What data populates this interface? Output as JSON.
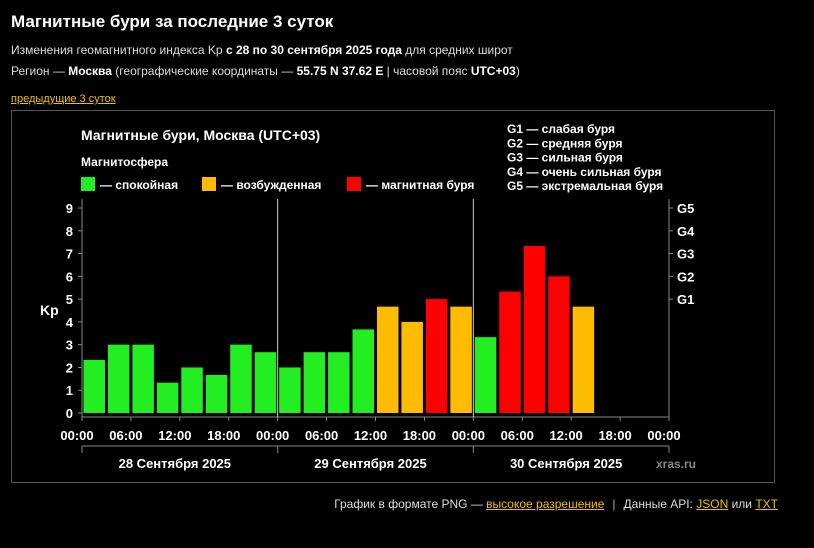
{
  "page": {
    "title": "Магнитные бури за последние 3 суток",
    "sub1_a": "Изменения геомагнитного индекса Kp ",
    "sub1_b": "с 28 по 30 сентября 2025 года",
    "sub1_c": " для средних широт",
    "sub2_a": "Регион — ",
    "sub2_b": "Москва",
    "sub2_c": " (географические координаты — ",
    "sub2_d": "55.75 N 37.62 E",
    "sub2_e": " | часовой пояс ",
    "sub2_f": "UTC+03",
    "sub2_g": ")",
    "prev_link": "предыдущие 3 суток"
  },
  "footer": {
    "text_a": "График в формате PNG — ",
    "hires_link": "высокое разрешение",
    "text_b": "Данные API: ",
    "json_link": "JSON",
    "text_or": " или ",
    "txt_link": "TXT"
  },
  "chart_data": {
    "type": "bar",
    "title": "Магнитные бури, Москва (UTC+03)",
    "ylabel": "Kp",
    "ylim": [
      0,
      9
    ],
    "yticks": [
      0,
      1,
      2,
      3,
      4,
      5,
      6,
      7,
      8,
      9
    ],
    "right_axis_labels": [
      {
        "label": "G1",
        "value": 5
      },
      {
        "label": "G2",
        "value": 6
      },
      {
        "label": "G3",
        "value": 7
      },
      {
        "label": "G4",
        "value": 8
      },
      {
        "label": "G5",
        "value": 9
      }
    ],
    "legend_title": "Магнитосфера",
    "legend": [
      {
        "label": "— спокойная",
        "color": "#22ee22"
      },
      {
        "label": "— возбужденная",
        "color": "#ffbb00"
      },
      {
        "label": "— магнитная буря",
        "color": "#ff0000"
      }
    ],
    "storm_levels": [
      "G1 — слабая буря",
      "G2 — средняя буря",
      "G3 — сильная буря",
      "G4 — очень сильная буря",
      "G5 — экстремальная буря"
    ],
    "x_tick_labels": [
      "00:00",
      "06:00",
      "12:00",
      "18:00",
      "00:00",
      "06:00",
      "12:00",
      "18:00",
      "00:00",
      "06:00",
      "12:00",
      "18:00",
      "00:00"
    ],
    "days": [
      "28 Сентября 2025",
      "29 Сентября 2025",
      "30 Сентября 2025"
    ],
    "watermark": "xras.ru",
    "values": [
      2.33,
      3.0,
      3.0,
      1.33,
      2.0,
      1.67,
      3.0,
      2.67,
      2.0,
      2.67,
      2.67,
      3.67,
      4.67,
      4.0,
      5.0,
      4.67,
      3.33,
      5.33,
      7.33,
      6.0,
      4.67
    ],
    "colors": {
      "quiet": "#22ee22",
      "unsettled": "#ffbb00",
      "storm": "#ff0000"
    }
  }
}
